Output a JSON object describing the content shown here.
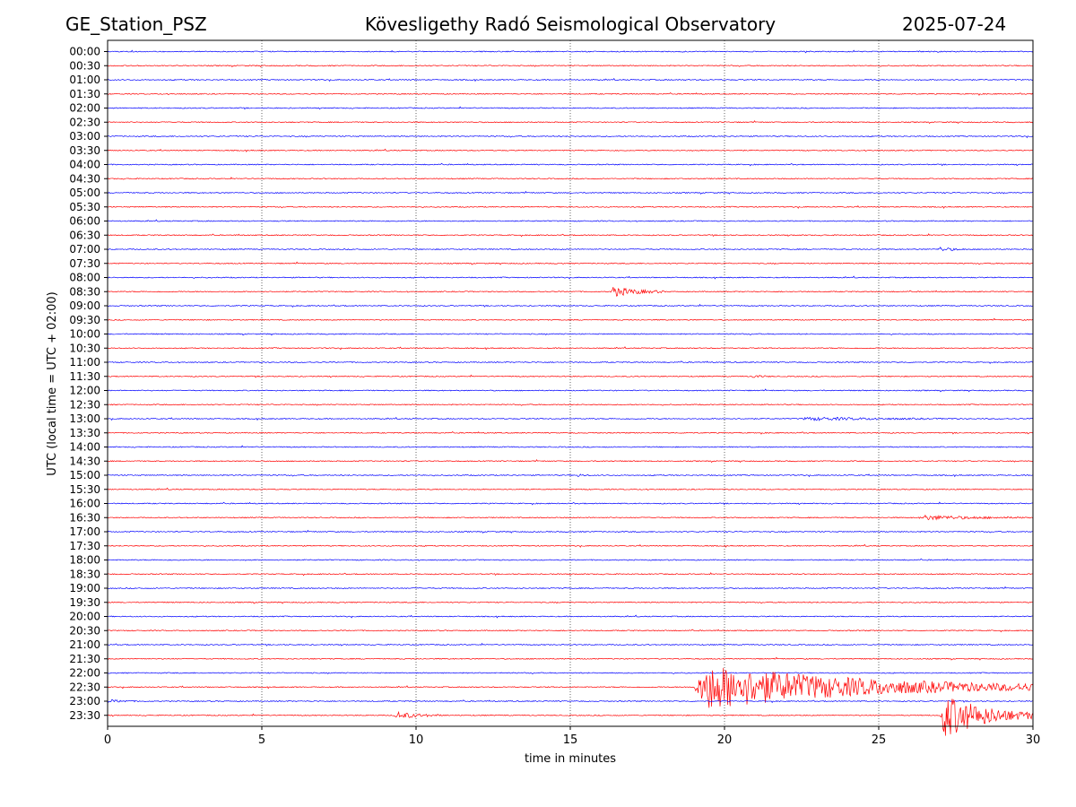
{
  "chart_data": {
    "type": "line",
    "station": "GE_Station_PSZ",
    "title": "Kövesligethy Radó Seismological Observatory",
    "date": "2025-07-24",
    "xlabel": "time in minutes",
    "ylabel": "UTC (local time = UTC + 02:00)",
    "xlim": [
      0,
      30
    ],
    "x_ticks": [
      0,
      5,
      10,
      15,
      20,
      25,
      30
    ],
    "grid": "vertical dotted",
    "row_labels": [
      "00:00",
      "00:30",
      "01:00",
      "01:30",
      "02:00",
      "02:30",
      "03:00",
      "03:30",
      "04:00",
      "04:30",
      "05:00",
      "05:30",
      "06:00",
      "06:30",
      "07:00",
      "07:30",
      "08:00",
      "08:30",
      "09:00",
      "09:30",
      "10:00",
      "10:30",
      "11:00",
      "11:30",
      "12:00",
      "12:30",
      "13:00",
      "13:30",
      "14:00",
      "14:30",
      "15:00",
      "15:30",
      "16:00",
      "16:30",
      "17:00",
      "17:30",
      "18:00",
      "18:30",
      "19:00",
      "19:30",
      "20:00",
      "20:30",
      "21:00",
      "21:30",
      "22:00",
      "22:30",
      "23:00",
      "23:30"
    ],
    "colors": [
      "#0000ff",
      "#ff0000"
    ],
    "events": [
      {
        "row": "07:00",
        "start_min": 26.9,
        "end_min": 27.8,
        "amplitude": 0.15
      },
      {
        "row": "08:30",
        "start_min": 16.3,
        "end_min": 18.0,
        "amplitude": 0.35
      },
      {
        "row": "11:30",
        "start_min": 20.9,
        "end_min": 21.5,
        "amplitude": 0.1
      },
      {
        "row": "13:00",
        "start_min": 22.5,
        "end_min": 27.5,
        "amplitude": 0.1
      },
      {
        "row": "15:00",
        "start_min": 15.2,
        "end_min": 15.6,
        "amplitude": 0.1
      },
      {
        "row": "16:30",
        "start_min": 26.3,
        "end_min": 30.0,
        "amplitude": 0.15
      },
      {
        "row": "22:30",
        "start_min": 19.0,
        "end_min": 30.0,
        "amplitude": 1.6
      },
      {
        "row": "23:00",
        "start_min": 0.0,
        "end_min": 1.0,
        "amplitude": 0.1
      },
      {
        "row": "23:30",
        "start_min": 9.3,
        "end_min": 10.8,
        "amplitude": 0.25
      },
      {
        "row": "23:30",
        "start_min": 27.0,
        "end_min": 30.0,
        "amplitude": 1.6
      }
    ]
  }
}
